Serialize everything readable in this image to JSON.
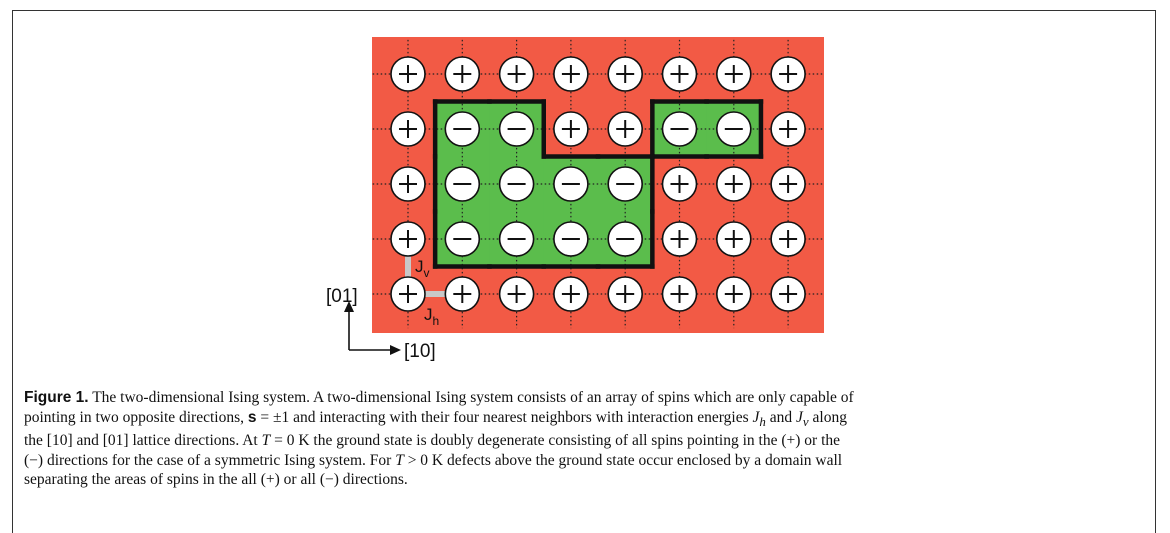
{
  "figure": {
    "colors": {
      "background": "#f25a45",
      "domain": "#5bbd4c",
      "wall": "#111111",
      "spin_fill": "#ffffff",
      "coupling": "#c8c8c8"
    },
    "grid_rows": [
      [
        "+",
        "+",
        "+",
        "+",
        "+",
        "+",
        "+",
        "+"
      ],
      [
        "+",
        "-",
        "-",
        "+",
        "+",
        "-",
        "-",
        "+"
      ],
      [
        "+",
        "-",
        "-",
        "-",
        "-",
        "+",
        "+",
        "+"
      ],
      [
        "+",
        "-",
        "-",
        "-",
        "-",
        "+",
        "+",
        "+"
      ],
      [
        "+",
        "+",
        "+",
        "+",
        "+",
        "+",
        "+",
        "+"
      ]
    ],
    "plus_symbol": "+",
    "minus_symbol": "−",
    "jv_label": "J",
    "jv_sub": "v",
    "jh_label": "J",
    "jh_sub": "h",
    "axis_vertical_label": "[01]",
    "axis_horizontal_label": "[10]"
  },
  "caption": {
    "label": "Figure 1.",
    "p1": " The two-dimensional Ising system. A two-dimensional Ising system consists of an array of spins which are only capable of",
    "p2a": "pointing in two opposite directions, ",
    "s_bold": "s",
    "p2b": " = ±1 and interacting with their four nearest neighbors with interaction energies ",
    "jh": "J",
    "jh_sub": "h",
    "and": " and ",
    "jv": "J",
    "jv_sub": "v",
    "p2c": " along",
    "p3a": "the [10] and [01] lattice directions. At ",
    "T1": "T",
    "p3b": " = 0 K the ground state is doubly degenerate consisting of all spins pointing in the (+) or the",
    "p4": "(−) directions for the case of a symmetric Ising system. For ",
    "T2": "T",
    "p4b": " > 0 K defects above the ground state occur enclosed by a domain wall",
    "p5": "separating the areas of spins in the all (+) or all (−) directions."
  }
}
